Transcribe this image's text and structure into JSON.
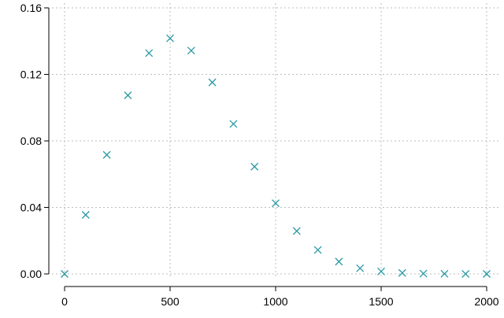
{
  "chart_data": {
    "type": "scatter",
    "title": "",
    "xlabel": "",
    "ylabel": "",
    "xlim": [
      0,
      2000
    ],
    "ylim": [
      0,
      0.16
    ],
    "x_ticks": [
      0,
      500,
      1000,
      1500,
      2000
    ],
    "x_tick_labels": [
      "0",
      "500",
      "1000",
      "1500",
      "2000"
    ],
    "y_ticks": [
      0,
      0.04,
      0.08,
      0.12,
      0.16
    ],
    "y_tick_labels": [
      "0.00",
      "0.04",
      "0.08",
      "0.12",
      "0.16"
    ],
    "grid": true,
    "marker": "x",
    "color": "#2a9aa3",
    "series": [
      {
        "x": [
          0,
          100,
          200,
          300,
          400,
          500,
          600,
          700,
          800,
          900,
          1000,
          1100,
          1200,
          1300,
          1400,
          1500,
          1600,
          1700,
          1800,
          1900,
          2000
        ],
        "y": [
          0.0,
          0.0355,
          0.0716,
          0.1074,
          0.1328,
          0.1417,
          0.1343,
          0.1152,
          0.0902,
          0.0645,
          0.0425,
          0.0258,
          0.0144,
          0.0074,
          0.0034,
          0.0015,
          0.0006,
          0.0002,
          0.0001,
          0.0,
          0.0
        ]
      }
    ]
  }
}
